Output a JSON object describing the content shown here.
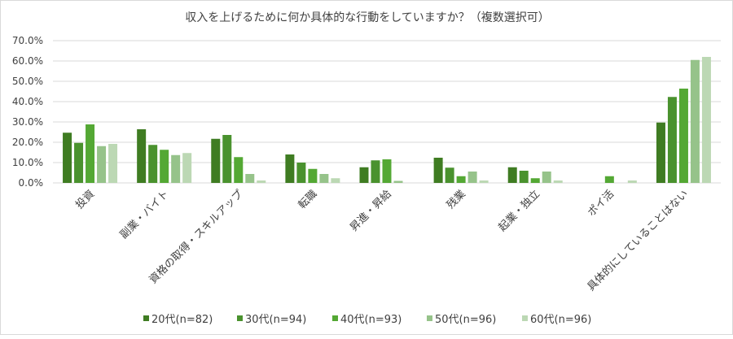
{
  "chart_data": {
    "type": "bar",
    "title": "収入を上げるために何か具体的な行動をしていますか？（複数選択可）",
    "categories": [
      "投資",
      "副業・バイト",
      "資格の取得・スキルアップ",
      "転職",
      "昇進・昇給",
      "残業",
      "起業・独立",
      "ポイ活",
      "具体的にしていることはない"
    ],
    "yticks": [
      "0.0%",
      "10.0%",
      "20.0%",
      "30.0%",
      "40.0%",
      "50.0%",
      "60.0%",
      "70.0%"
    ],
    "ylim": [
      0,
      70
    ],
    "grid": true,
    "legend_position": "bottom",
    "series": [
      {
        "name": "20代(n=82)",
        "color": "#3f7c22",
        "values": [
          24.7,
          26.4,
          21.7,
          14.0,
          7.7,
          12.4,
          7.7,
          0,
          29.7
        ]
      },
      {
        "name": "30代(n=94)",
        "color": "#4a922e",
        "values": [
          19.7,
          18.7,
          23.6,
          10.0,
          11.1,
          7.5,
          6.0,
          0,
          42.3
        ]
      },
      {
        "name": "40代(n=93)",
        "color": "#54a834",
        "values": [
          28.8,
          16.3,
          12.7,
          6.9,
          11.6,
          3.3,
          2.3,
          3.3,
          46.4
        ]
      },
      {
        "name": "50代(n=96)",
        "color": "#96c38a",
        "values": [
          18.1,
          13.7,
          4.4,
          4.4,
          1.0,
          5.6,
          5.6,
          0,
          60.5
        ]
      },
      {
        "name": "60代(n=96)",
        "color": "#bcd8b4",
        "values": [
          19.2,
          14.7,
          1.2,
          2.3,
          0,
          1.2,
          1.2,
          1.2,
          62.0
        ]
      }
    ]
  }
}
